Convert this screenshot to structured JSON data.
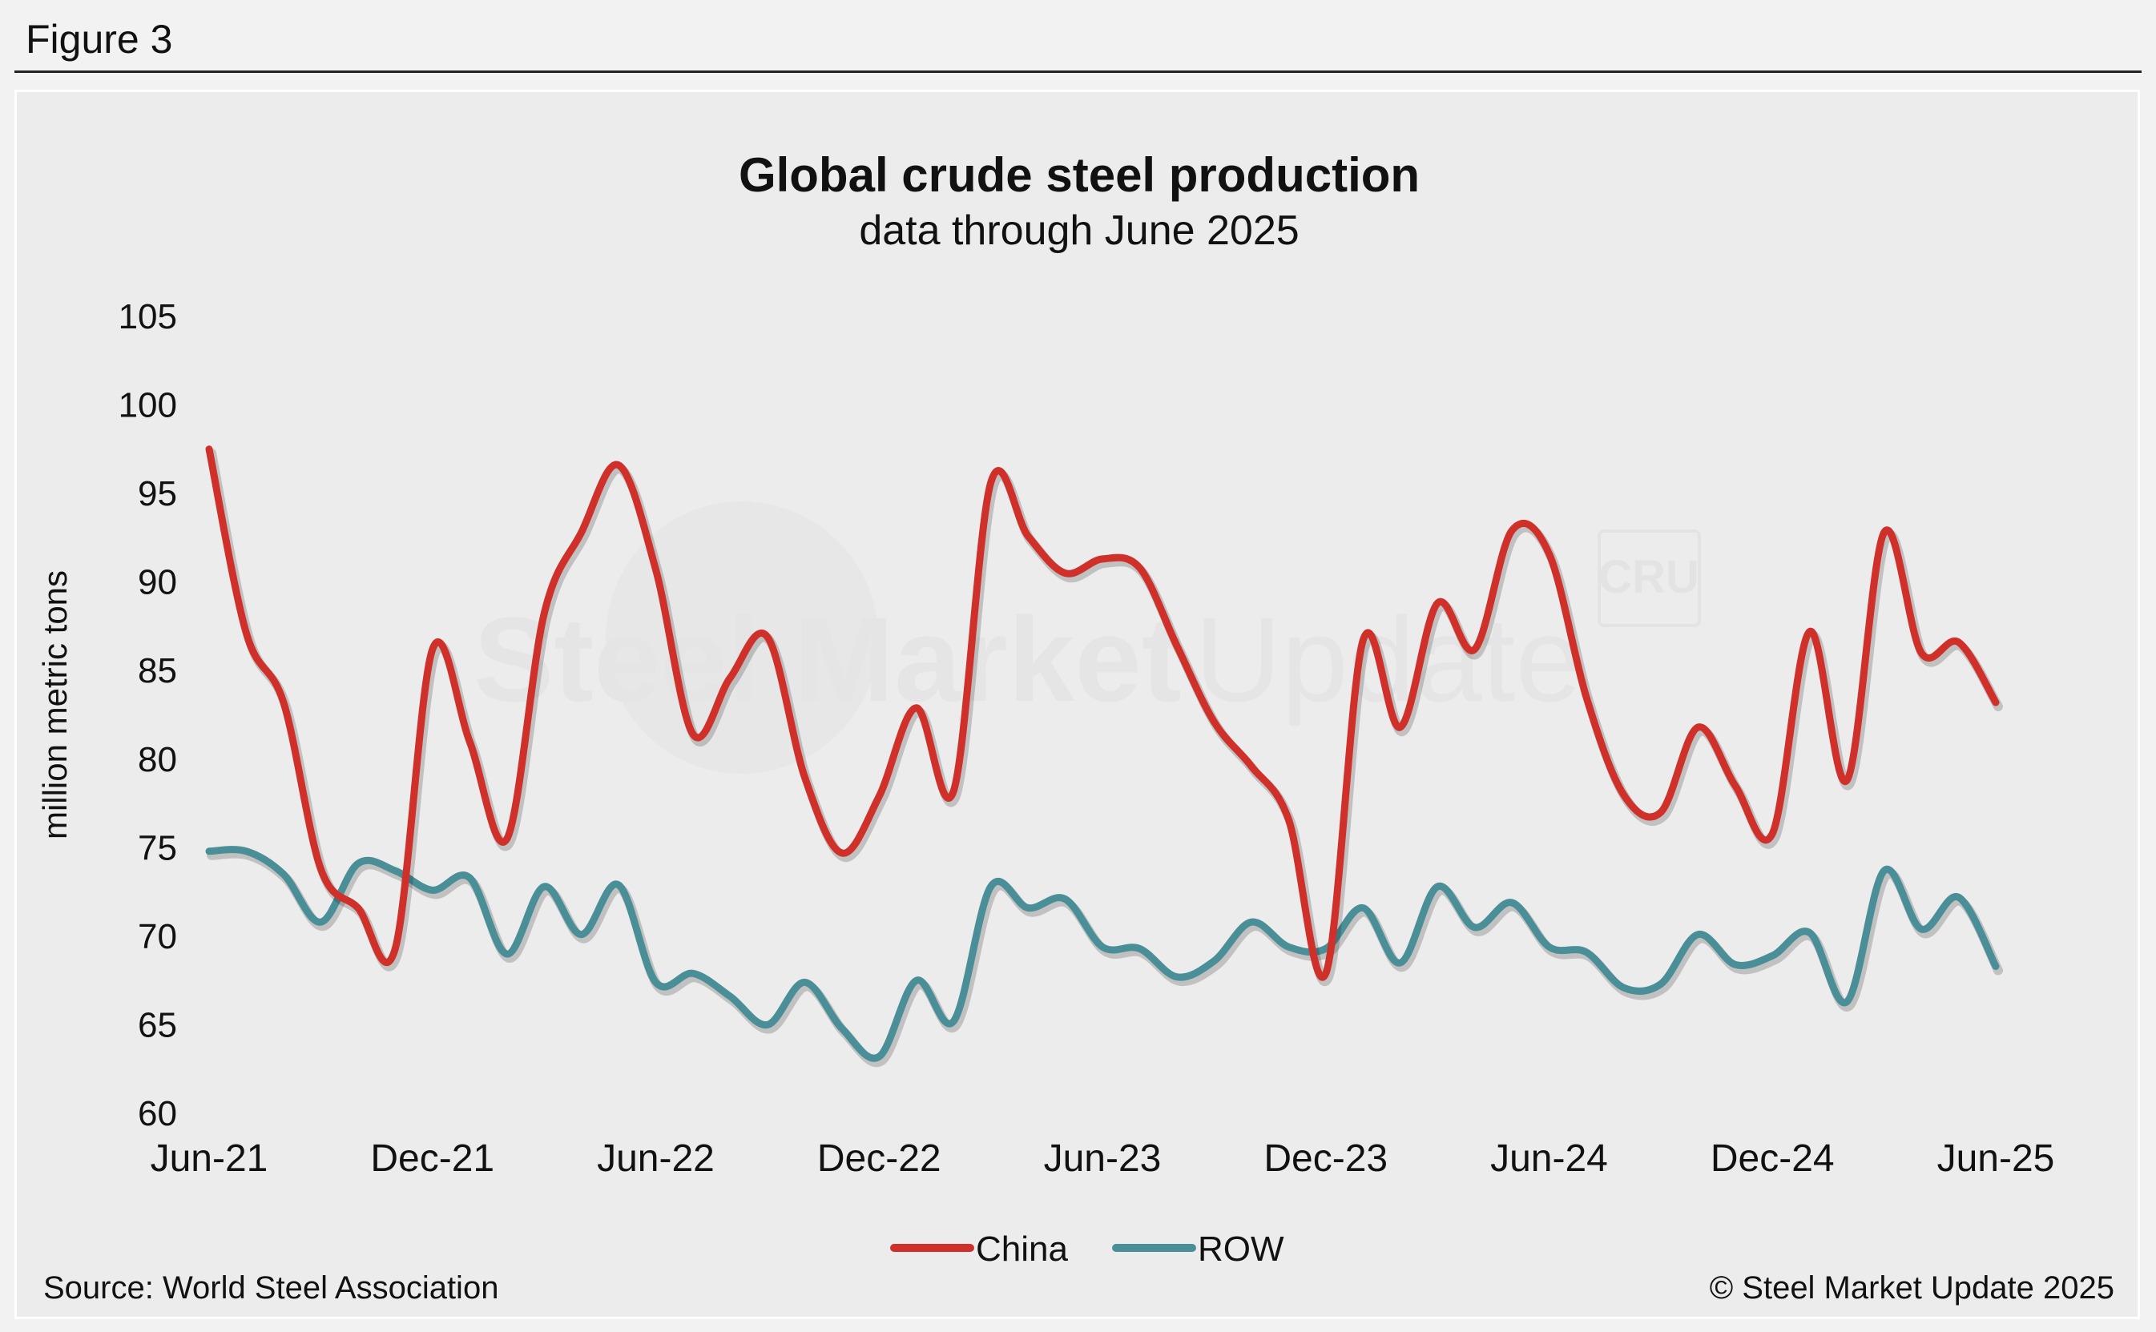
{
  "figure_label": "Figure 3",
  "watermark": {
    "text_bold": "Steel Market",
    "text_light": "Update",
    "badge": "CRU"
  },
  "source": "Source: World Steel Association",
  "copyright": "© Steel Market Update 2025",
  "colors": {
    "china": "#d0302a",
    "row": "#4a8f97",
    "background": "#ececec"
  },
  "chart_data": {
    "type": "line",
    "title": "Global crude steel production",
    "subtitle": "data through June 2025",
    "xlabel": "",
    "ylabel": "million metric tons",
    "ylim": [
      60,
      105
    ],
    "yticks": [
      60,
      65,
      70,
      75,
      80,
      85,
      90,
      95,
      100,
      105
    ],
    "grid": false,
    "legend": "bottom-center",
    "x_tick_labels": [
      "Jun-21",
      "Dec-21",
      "Jun-22",
      "Dec-22",
      "Jun-23",
      "Dec-23",
      "Jun-24",
      "Dec-24",
      "Jun-25"
    ],
    "x": [
      "Jun-21",
      "Jul-21",
      "Aug-21",
      "Sep-21",
      "Oct-21",
      "Nov-21",
      "Dec-21",
      "Jan-22",
      "Feb-22",
      "Mar-22",
      "Apr-22",
      "May-22",
      "Jun-22",
      "Jul-22",
      "Aug-22",
      "Sep-22",
      "Oct-22",
      "Nov-22",
      "Dec-22",
      "Jan-23",
      "Feb-23",
      "Mar-23",
      "Apr-23",
      "May-23",
      "Jun-23",
      "Jul-23",
      "Aug-23",
      "Sep-23",
      "Oct-23",
      "Nov-23",
      "Dec-23",
      "Jan-24",
      "Feb-24",
      "Mar-24",
      "Apr-24",
      "May-24",
      "Jun-24",
      "Jul-24",
      "Aug-24",
      "Sep-24",
      "Oct-24",
      "Nov-24",
      "Dec-24",
      "Jan-25",
      "Feb-25",
      "Mar-25",
      "Apr-25",
      "May-25",
      "Jun-25"
    ],
    "series": [
      {
        "name": "China",
        "values": [
          97.5,
          87.1,
          83.2,
          73.8,
          71.6,
          69.3,
          86.2,
          81.0,
          75.5,
          88.2,
          92.8,
          96.6,
          90.7,
          81.4,
          84.6,
          86.9,
          79.0,
          74.7,
          77.9,
          82.9,
          78.2,
          95.6,
          92.6,
          90.5,
          91.3,
          90.8,
          86.4,
          82.1,
          79.6,
          76.6,
          67.9,
          86.7,
          81.8,
          88.8,
          86.2,
          92.9,
          91.6,
          83.5,
          78.0,
          77.0,
          81.8,
          78.5,
          75.8,
          87.2,
          78.8,
          92.8,
          86.0,
          86.6,
          83.2
        ]
      },
      {
        "name": "ROW",
        "values": [
          74.8,
          74.8,
          73.5,
          70.8,
          74.1,
          73.7,
          72.6,
          73.3,
          69.0,
          72.8,
          70.1,
          72.9,
          67.4,
          67.9,
          66.6,
          65.0,
          67.4,
          64.8,
          63.2,
          67.5,
          65.2,
          72.8,
          71.6,
          72.1,
          69.4,
          69.3,
          67.7,
          68.6,
          70.8,
          69.4,
          69.3,
          71.6,
          68.5,
          72.8,
          70.5,
          71.9,
          69.4,
          69.1,
          67.1,
          67.3,
          70.1,
          68.4,
          68.9,
          70.2,
          66.3,
          73.7,
          70.4,
          72.2,
          68.3
        ]
      }
    ]
  }
}
